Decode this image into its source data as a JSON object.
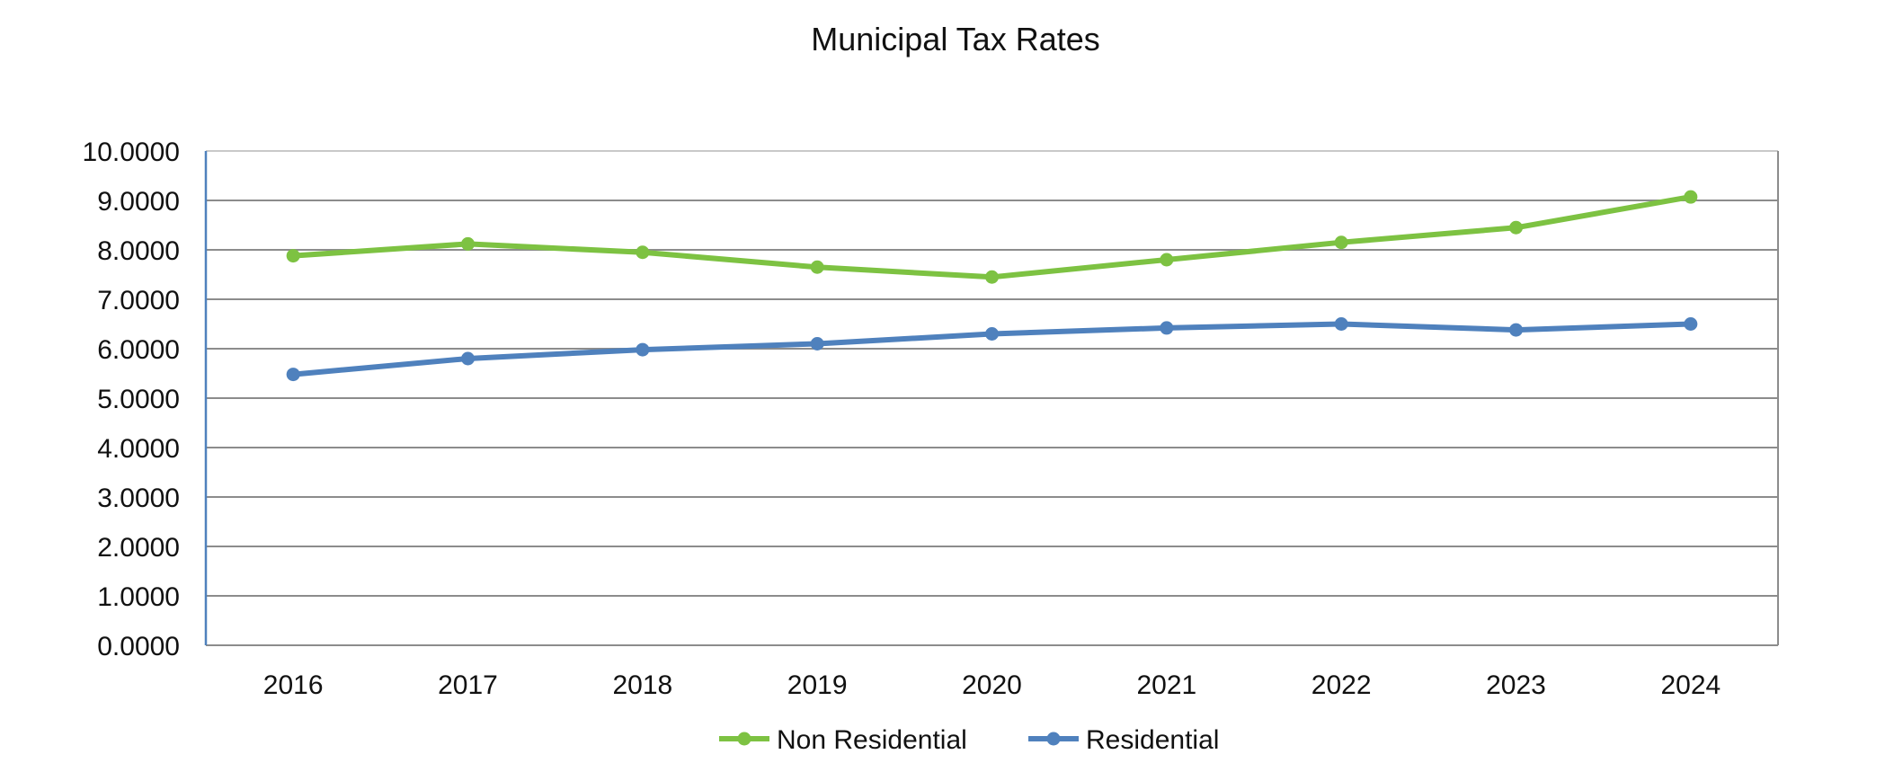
{
  "chart_data": {
    "type": "line",
    "title": "Municipal Tax Rates",
    "xlabel": "",
    "ylabel": "",
    "categories": [
      "2016",
      "2017",
      "2018",
      "2019",
      "2020",
      "2021",
      "2022",
      "2023",
      "2024"
    ],
    "ylim": [
      0,
      10
    ],
    "yticks": [
      "0.0000",
      "1.0000",
      "2.0000",
      "3.0000",
      "4.0000",
      "5.0000",
      "6.0000",
      "7.0000",
      "8.0000",
      "9.0000",
      "10.0000"
    ],
    "grid": true,
    "legend_position": "bottom",
    "series": [
      {
        "name": "Non Residential",
        "color": "#7DC242",
        "values": [
          7.88,
          8.12,
          7.95,
          7.65,
          7.45,
          7.8,
          8.15,
          8.45,
          9.07
        ]
      },
      {
        "name": "Residential",
        "color": "#4F81BD",
        "values": [
          5.48,
          5.8,
          5.98,
          6.1,
          6.3,
          6.42,
          6.5,
          6.38,
          6.5
        ]
      }
    ]
  }
}
